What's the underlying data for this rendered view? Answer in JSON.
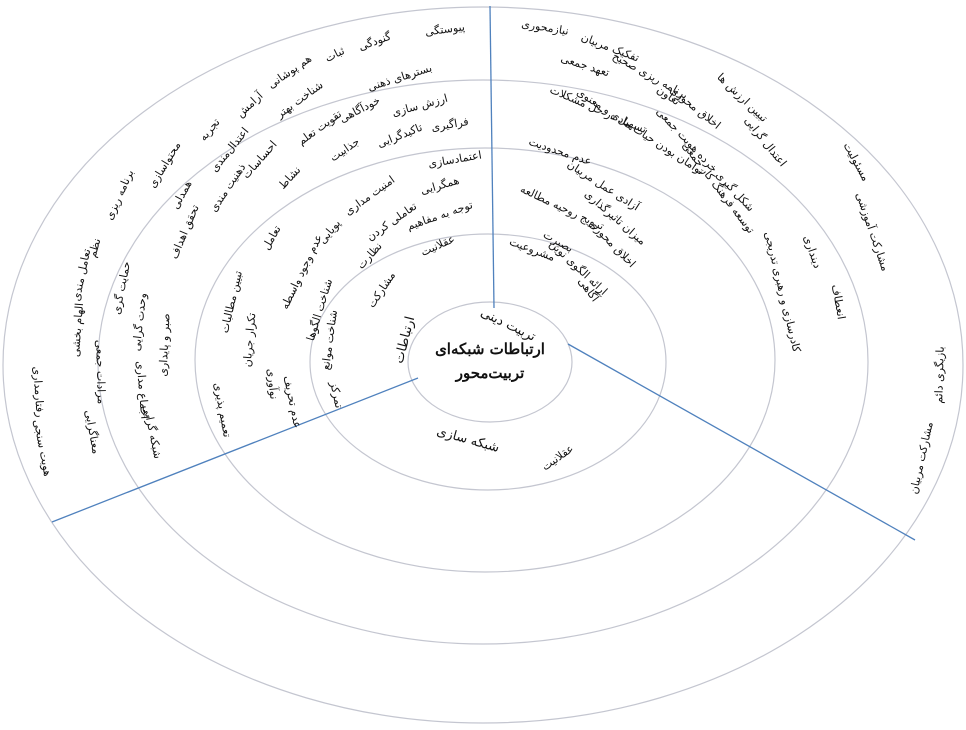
{
  "center_title": [
    "ارتباطات شبکه‌ای",
    "تربیت‌محور"
  ],
  "sectors": [
    "ارتباطات",
    "تربیت دینی",
    "شبکه سازی"
  ],
  "items": [
    "پیوستگی",
    "گنودگی",
    "ثبات",
    "هم پوشانی",
    "بسترهای ذهنی",
    "شناخت بهتر",
    "آرامش",
    "ارزش سازی",
    "خودآگاهی",
    "تجربه",
    "اعتدال‌مندی",
    "تقویت تعلم",
    "فراگیری",
    "تاکیدگرایی",
    "جذابیت",
    "احساسات",
    "نشاط",
    "ذهنیت مندی",
    "همدلی",
    "محتواسازی",
    "برنامه ریزی",
    "نظم",
    "تعامل مندی",
    "حمایت گری",
    "تحقق اهداف",
    "الهام بخشی",
    "وحدت گرایی",
    "مرادات جمعی",
    "صبر و پایداری",
    "رفتارمداری",
    "اجماع مداری",
    "معناگرایی",
    "شبکه گرایی",
    "هویت سنجی",
    "اعتمادسازی",
    "همگرایی",
    "امنیت مداری",
    "تعاملی کردن",
    "توجه به مفاهیم",
    "پویایی",
    "تعامل",
    "عقلانیت",
    "نظارت",
    "عدم وجود واسطه",
    "مشارکت",
    "شناخت الگوها",
    "تبیین مطالبات",
    "شناخت موانع",
    "تکرار جریان",
    "تمرکز",
    "عدم تحریف",
    "نوآوری",
    "تعمیم پذیری",
    "نیازمحوری",
    "تفکیک مربیان",
    "تعهد جمعی",
    "برنامه ریزی صحیح",
    "تعاون",
    "تسهیل در حل مشکلات",
    "اخلاق محوری",
    "تبیین ارزش ها",
    "توامان بودن حیات مادی و معنوی",
    "اعتدال گرایی",
    "مسئولیت",
    "شکل گیری خرده هویت جمعی",
    "توسعه فرهنگ کار جمعی",
    "مشارکت آموزشی",
    "دینداری",
    "کادرسازی و رهبری تدریجی",
    "انعطاف",
    "بازیگری دائم",
    "مشارکت مربیان",
    "عدم محدودیت",
    "آزادی عمل مربیان",
    "ترویج روحیه مطالعه",
    "میزان تاثیرگذاری",
    "بصیرت",
    "اخلاق محوری",
    "مشروعیت",
    "ارائه الگوی نوین",
    "آگاهی",
    "عقلانیت"
  ]
}
